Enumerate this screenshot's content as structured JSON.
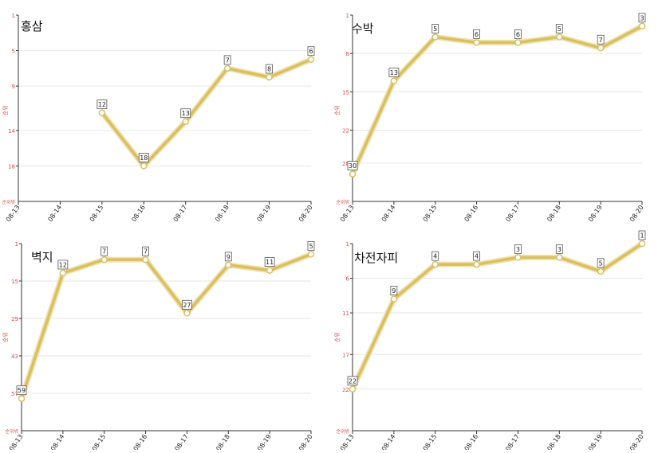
{
  "colors": {
    "line": "#d9bf62",
    "line_glow": "#efe2ad",
    "marker_fill": "#ffffff",
    "axis": "#333333",
    "grid": "#e6e6e6",
    "tick_label": "#e04a4a",
    "date_label": "#222222",
    "label_box_border": "#555555",
    "label_box_fill": "#ffffff"
  },
  "chart_data": [
    {
      "type": "line",
      "title": "홍삼",
      "ylabel": "순위",
      "bottom_tick": "순위밖",
      "y_inverted": true,
      "yticks": [
        1,
        5,
        9,
        14,
        18
      ],
      "ylim": [
        1,
        22
      ],
      "categories": [
        "08-13",
        "08-14",
        "08-15",
        "08-16",
        "08-17",
        "08-18",
        "08-19",
        "08-20"
      ],
      "series": [
        {
          "values": [
            null,
            null,
            12,
            18,
            13,
            7,
            8,
            6
          ]
        }
      ]
    },
    {
      "type": "line",
      "title": "수박",
      "ylabel": "순위",
      "bottom_tick": "순위밖",
      "y_inverted": true,
      "yticks": [
        1,
        8,
        15,
        22,
        28
      ],
      "ylim": [
        1,
        35
      ],
      "categories": [
        "08-13",
        "08-14",
        "08-15",
        "08-16",
        "08-17",
        "08-18",
        "08-19",
        "08-20"
      ],
      "series": [
        {
          "values": [
            30,
            13,
            5,
            6,
            6,
            5,
            7,
            3
          ]
        }
      ]
    },
    {
      "type": "line",
      "title": "벽지",
      "ylabel": "순위",
      "bottom_tick": "순위밖",
      "y_inverted": true,
      "yticks": [
        1,
        15,
        29,
        43,
        57
      ],
      "ylim": [
        1,
        71
      ],
      "categories": [
        "08-13",
        "08-14",
        "08-15",
        "08-16",
        "08-17",
        "08-18",
        "08-19",
        "08-20"
      ],
      "series": [
        {
          "values": [
            59,
            12,
            7,
            7,
            27,
            9,
            11,
            5
          ]
        }
      ]
    },
    {
      "type": "line",
      "title": "차전자피",
      "ylabel": "순위",
      "bottom_tick": "순위밖",
      "y_inverted": true,
      "yticks": [
        1,
        6,
        11,
        17,
        22
      ],
      "ylim": [
        1,
        28
      ],
      "categories": [
        "08-13",
        "08-14",
        "08-15",
        "08-16",
        "08-17",
        "08-18",
        "08-19",
        "08-20"
      ],
      "series": [
        {
          "values": [
            22,
            9,
            4,
            4,
            3,
            3,
            5,
            1
          ]
        }
      ]
    }
  ]
}
